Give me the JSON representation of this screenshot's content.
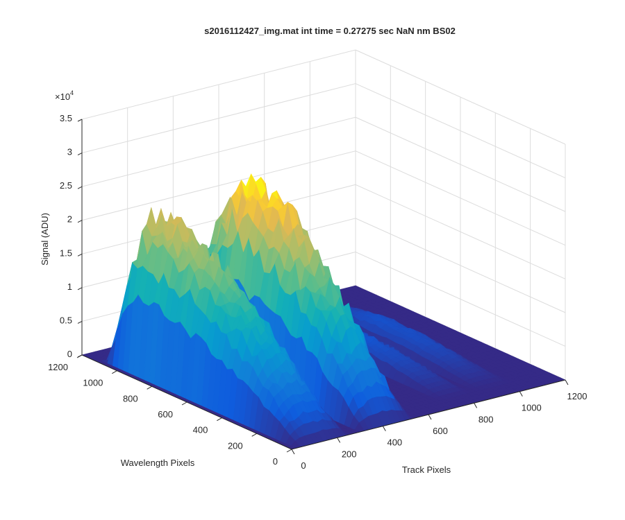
{
  "chart_data": {
    "type": "surface",
    "title": "s2016112427_img.mat int time = 0.27275 sec  NaN nm BS02",
    "xlabel": "Track Pixels",
    "ylabel": "Wavelength Pixels",
    "zlabel": "Signal (ADU)",
    "z_exponent_label": "×10",
    "z_exponent": "4",
    "xlim": [
      0,
      1200
    ],
    "ylim": [
      0,
      1200
    ],
    "zlim": [
      0,
      35000
    ],
    "x_ticks": [
      "0",
      "200",
      "400",
      "600",
      "800",
      "1000",
      "1200"
    ],
    "y_ticks": [
      "0",
      "200",
      "400",
      "600",
      "800",
      "1000",
      "1200"
    ],
    "z_ticks": [
      "0",
      "0.5",
      "1",
      "1.5",
      "2",
      "2.5",
      "3",
      "3.5"
    ],
    "x_tick_values": [
      0,
      200,
      400,
      600,
      800,
      1000,
      1200
    ],
    "y_tick_values": [
      0,
      200,
      400,
      600,
      800,
      1000,
      1200
    ],
    "z_tick_values": [
      0,
      5000,
      10000,
      15000,
      20000,
      25000,
      30000,
      35000
    ],
    "grid": true,
    "colormap": "parula",
    "colors": {
      "low": "#352a87",
      "mid_low": "#0f5cdd",
      "mid": "#1aa0c9",
      "mid_high": "#7dba7a",
      "high": "#f9d030",
      "peak": "#f9fb0e"
    },
    "peaks": [
      {
        "track_center": 140,
        "track_halfwidth": 110,
        "wavelength_start": 0,
        "wavelength_end": 1100,
        "max_signal": 22000,
        "max_at_wavelength": 950
      },
      {
        "track_center": 420,
        "track_halfwidth": 110,
        "wavelength_start": 0,
        "wavelength_end": 1150,
        "max_signal": 26000,
        "max_at_wavelength": 750
      },
      {
        "track_center": 790,
        "track_halfwidth": 70,
        "wavelength_start": 100,
        "wavelength_end": 1150,
        "max_signal": 2800,
        "max_at_wavelength": 700
      },
      {
        "track_center": 960,
        "track_halfwidth": 70,
        "wavelength_start": 100,
        "wavelength_end": 1150,
        "max_signal": 2500,
        "max_at_wavelength": 700
      }
    ]
  }
}
